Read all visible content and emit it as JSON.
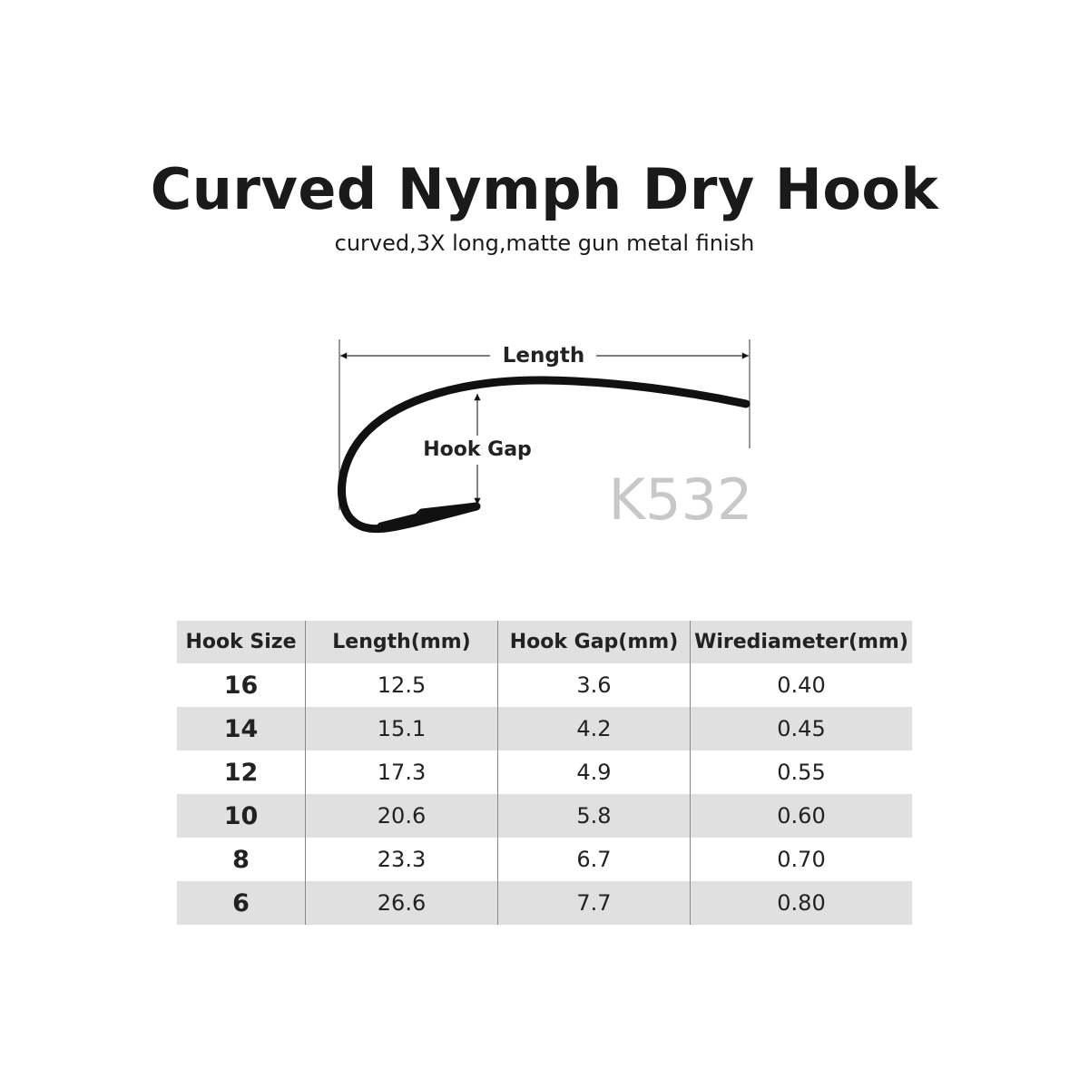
{
  "title": "Curved Nymph Dry Hook",
  "subtitle": "curved,3X long,matte gun metal finish",
  "diagram": {
    "length_label": "Length",
    "gap_label": "Hook Gap",
    "model": "K532",
    "model_color": "#c8c8c8"
  },
  "table": {
    "headers": [
      "Hook Size",
      "Length(mm)",
      "Hook Gap(mm)",
      "Wirediameter(mm)"
    ],
    "rows": [
      [
        "16",
        "12.5",
        "3.6",
        "0.40"
      ],
      [
        "14",
        "15.1",
        "4.2",
        "0.45"
      ],
      [
        "12",
        "17.3",
        "4.9",
        "0.55"
      ],
      [
        "10",
        "20.6",
        "5.8",
        "0.60"
      ],
      [
        "8",
        "23.3",
        "6.7",
        "0.70"
      ],
      [
        "6",
        "26.6",
        "7.7",
        "0.80"
      ]
    ]
  }
}
